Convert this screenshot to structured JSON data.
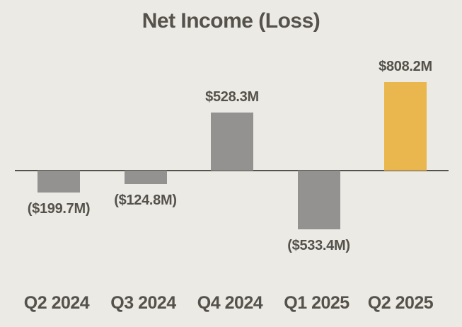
{
  "title": "Net Income (Loss)",
  "colors": {
    "background": "#ECEAE5",
    "bar_default": "#949291",
    "bar_highlight": "#E9B74D",
    "text": "#55524B",
    "axis_line": "#55524B"
  },
  "chart_data": {
    "type": "bar",
    "title": "Net Income (Loss)",
    "categories": [
      "Q2 2024",
      "Q3 2024",
      "Q4 2024",
      "Q1 2025",
      "Q2 2025"
    ],
    "values": [
      -199.7,
      -124.8,
      528.3,
      -533.4,
      808.2
    ],
    "value_labels": [
      "($199.7M)",
      "($124.8M)",
      "$528.3M",
      "($533.4M)",
      "$808.2M"
    ],
    "bar_styles": [
      "default",
      "default",
      "default",
      "default",
      "highlight"
    ],
    "baseline": 0,
    "ylim": [
      -600,
      900
    ],
    "grid": false,
    "legend": false,
    "xlabel": "",
    "ylabel": ""
  }
}
